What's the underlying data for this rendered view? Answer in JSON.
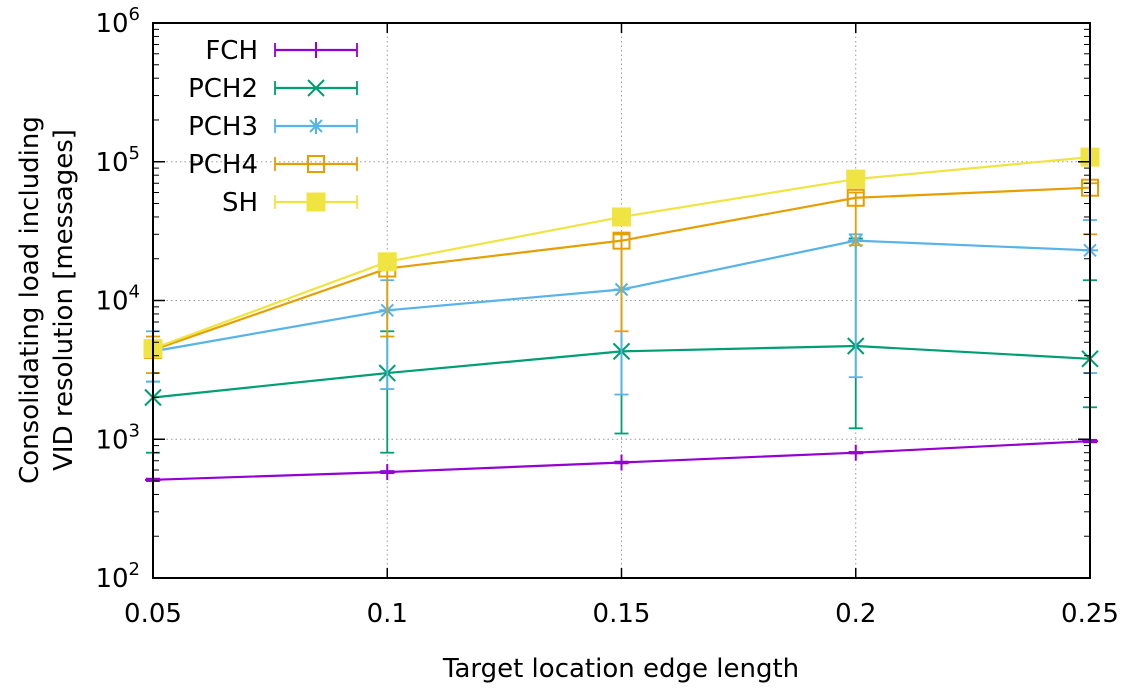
{
  "chart_data": {
    "type": "line",
    "title": "",
    "xlabel": "Target location edge length",
    "ylabel_line1": "Consolidating load including",
    "ylabel_line2": "VID resolution [messages]",
    "xlim": [
      0.05,
      0.25
    ],
    "ylim": [
      100,
      1000000
    ],
    "yscale": "log",
    "grid": true,
    "legend_position": "top-left",
    "x_ticks": [
      0.05,
      0.1,
      0.15,
      0.2,
      0.25
    ],
    "x_tick_labels": [
      "0.05",
      "0.1",
      "0.15",
      "0.2",
      "0.25"
    ],
    "y_ticks": [
      100,
      1000,
      10000,
      100000,
      1000000
    ],
    "y_tick_labels": [
      {
        "base": "10",
        "exp": "2"
      },
      {
        "base": "10",
        "exp": "3"
      },
      {
        "base": "10",
        "exp": "4"
      },
      {
        "base": "10",
        "exp": "5"
      },
      {
        "base": "10",
        "exp": "6"
      }
    ],
    "x": [
      0.05,
      0.1,
      0.15,
      0.2,
      0.25
    ],
    "series": [
      {
        "name": "FCH",
        "color": "#9400d3",
        "marker": "plus",
        "values": [
          510,
          580,
          680,
          800,
          970
        ],
        "err_low": [
          500,
          570,
          670,
          790,
          950
        ],
        "err_high": [
          520,
          590,
          690,
          810,
          990
        ]
      },
      {
        "name": "PCH2",
        "color": "#009e73",
        "marker": "cross",
        "values": [
          2000,
          3000,
          4300,
          4700,
          3800
        ],
        "err_low": [
          800,
          800,
          1100,
          1200,
          1700
        ],
        "err_high": [
          2600,
          6000,
          12000,
          28000,
          14000
        ]
      },
      {
        "name": "PCH3",
        "color": "#56b4e9",
        "marker": "star",
        "values": [
          4300,
          8500,
          12000,
          27000,
          23000
        ],
        "err_low": [
          2600,
          2300,
          2100,
          2800,
          3000
        ],
        "err_high": [
          6000,
          14000,
          30000,
          30000,
          38000
        ]
      },
      {
        "name": "PCH4",
        "color": "#e69f00",
        "marker": "square-open",
        "values": [
          4400,
          17000,
          27000,
          55000,
          65000
        ],
        "err_low": [
          3000,
          5500,
          6000,
          25000,
          30000
        ],
        "err_high": [
          5500,
          20000,
          30000,
          60000,
          70000
        ]
      },
      {
        "name": "SH",
        "color": "#f0e442",
        "marker": "square-filled",
        "values": [
          4500,
          19000,
          40000,
          75000,
          108000
        ],
        "err_low": [
          4300,
          17000,
          38000,
          72000,
          104000
        ],
        "err_high": [
          4700,
          21000,
          42000,
          78000,
          112000
        ]
      }
    ]
  }
}
